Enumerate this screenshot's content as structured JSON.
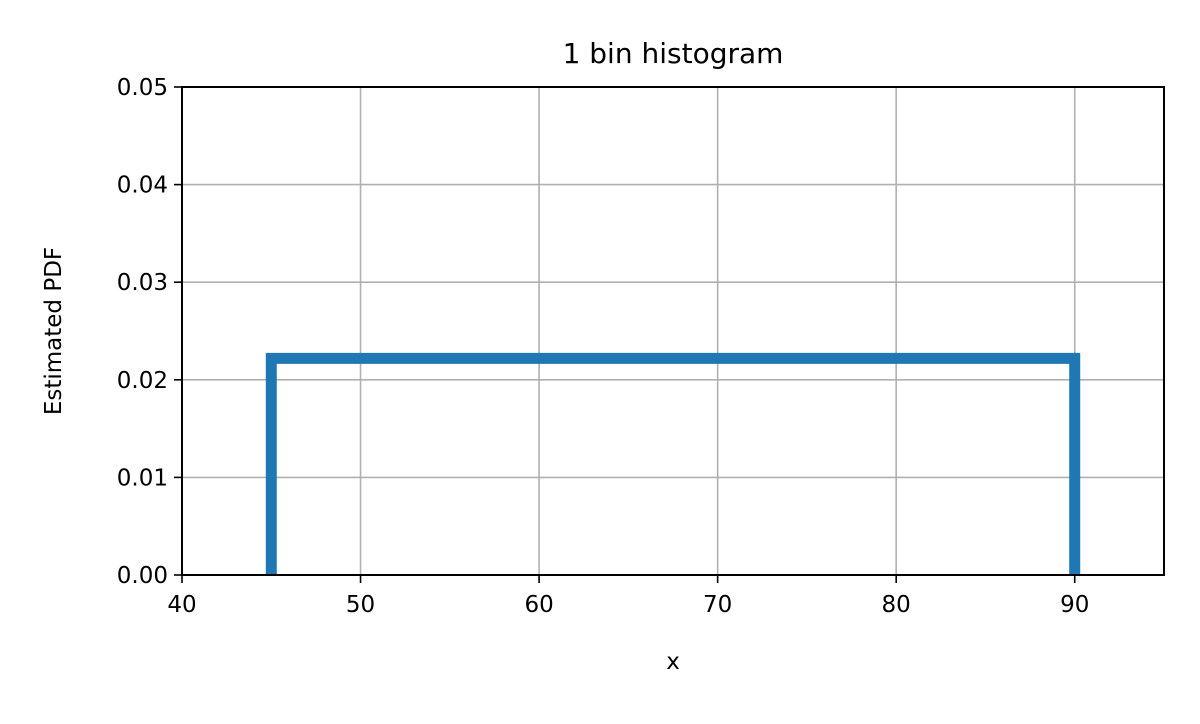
{
  "chart_data": {
    "type": "histogram",
    "title": "1 bin histogram",
    "xlabel": "x",
    "ylabel": "Estimated PDF",
    "xlim": [
      40,
      95
    ],
    "ylim": [
      0,
      0.05
    ],
    "xticks": [
      40,
      50,
      60,
      70,
      80,
      90
    ],
    "xtick_labels": [
      "40",
      "50",
      "60",
      "70",
      "80",
      "90"
    ],
    "yticks": [
      0.0,
      0.01,
      0.02,
      0.03,
      0.04,
      0.05
    ],
    "ytick_labels": [
      "0.00",
      "0.01",
      "0.02",
      "0.03",
      "0.04",
      "0.05"
    ],
    "grid": true,
    "histtype": "step",
    "bins": [
      {
        "start": 45,
        "end": 90,
        "density": 0.0222
      }
    ],
    "series_color": "#1f77b4",
    "grid_color": "#b0b0b0"
  }
}
